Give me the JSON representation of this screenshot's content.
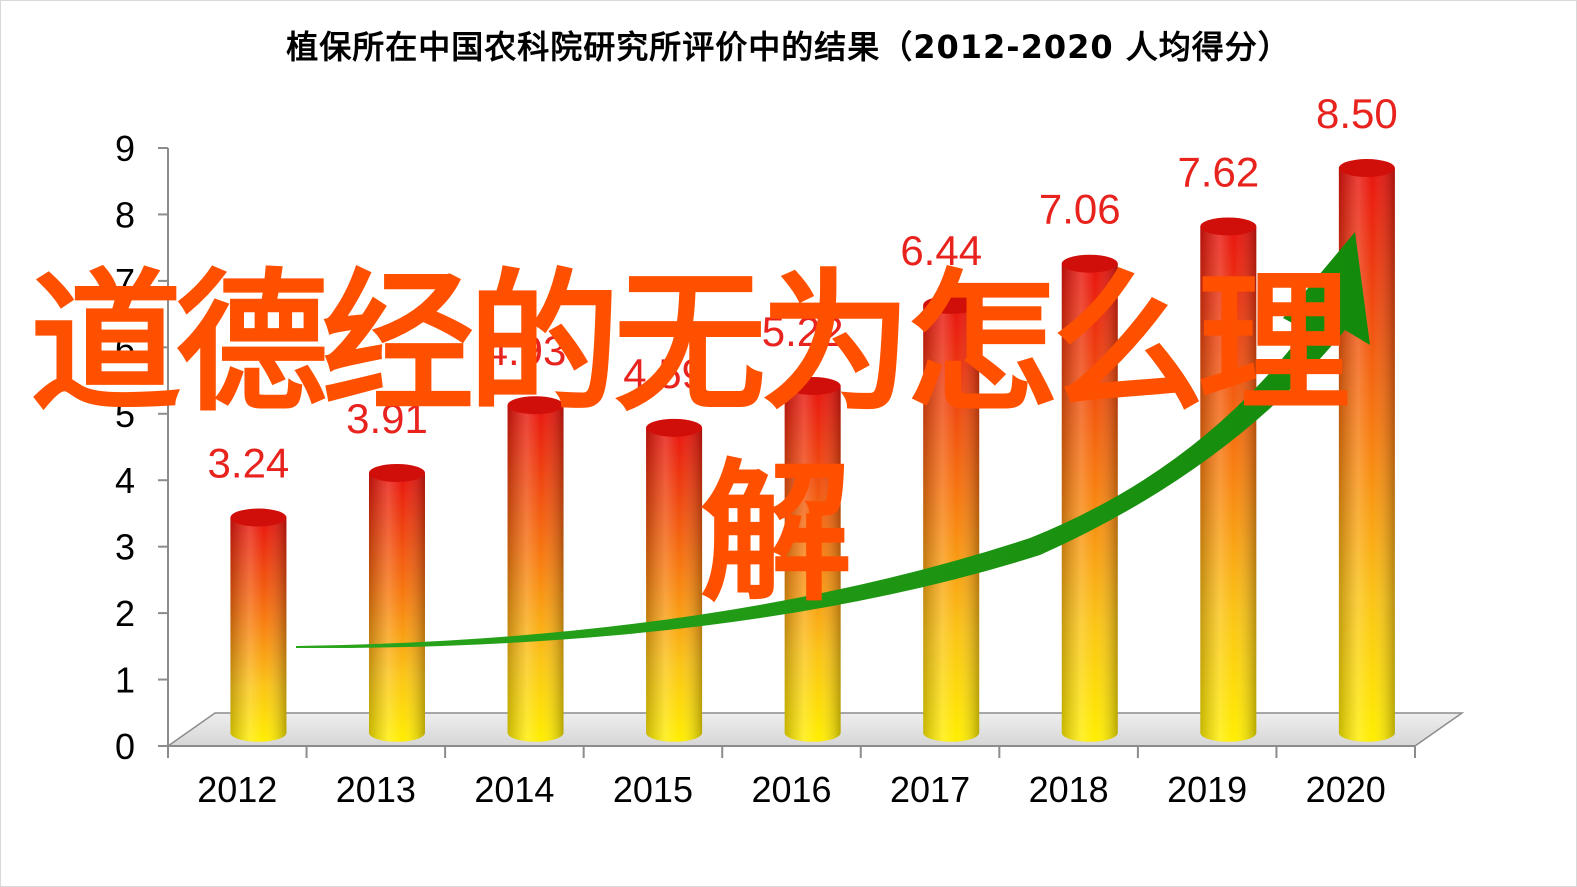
{
  "chart_data": {
    "type": "bar",
    "title": "植保所在中国农科院研究所评价中的结果（2012-2020  人均得分）",
    "categories": [
      "2012",
      "2013",
      "2014",
      "2015",
      "2016",
      "2017",
      "2018",
      "2019",
      "2020"
    ],
    "values": [
      3.24,
      3.91,
      4.93,
      4.59,
      5.22,
      6.44,
      7.06,
      7.62,
      8.5
    ],
    "data_labels": [
      "3.24",
      "3.91",
      "4.93",
      "4.59",
      "5.22",
      "6.44",
      "7.06",
      "7.62",
      "8.50"
    ],
    "y_ticks": [
      "0",
      "1",
      "2",
      "3",
      "4",
      "5",
      "6",
      "7",
      "8",
      "9"
    ],
    "ylim": [
      0,
      9
    ],
    "xlabel": "",
    "ylabel": "",
    "grid": false,
    "style": "3d-cylinder",
    "colors": {
      "bar_top": "#e8140f",
      "bar_bottom": "#ffee00",
      "label": "#e8231e",
      "trend_arrow": "#1e9a14"
    },
    "trend_arrow": true
  },
  "overlay": {
    "line1": "道德经的无为怎么理",
    "line2": "解",
    "color": "#ff5000"
  }
}
